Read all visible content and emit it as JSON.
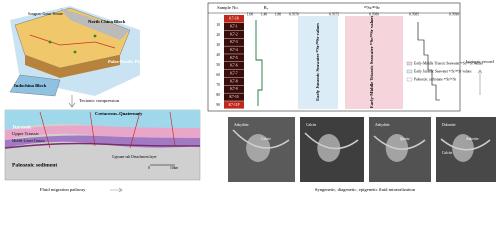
{
  "map": {
    "terrane": "Songpan -Ganzi Terrane",
    "north_china": "North China Block",
    "pacific": "Paleo-Pacific Plate",
    "indochina": "Indochina Block"
  },
  "arrows": {
    "tectonic": "Tectonic compression",
    "fluid": "Fluid migration pathway",
    "isotopic": "Isotopic record",
    "mineral": "Syngenetic, diagenetic, epigenetic fluid mineralization"
  },
  "section": {
    "cretaceous": "Cretaceous–Quaternary",
    "jurassic": "Jurassic",
    "upper_triassic": "Upper Triassic",
    "lower_triassic": "Middle-Lower Triassic",
    "paleozoic": "Paleozoic sediment",
    "gypsum": "Gypsum-salt Detachment layer",
    "scale": [
      "0",
      "10km"
    ]
  },
  "isotope_panel": {
    "headers": [
      "Sample No.",
      "Rₒ",
      "⁸⁷Sr/⁸⁶Sr"
    ],
    "samples": [
      "K7-1R",
      "K7-1",
      "K7-2",
      "K7-3",
      "K7-4",
      "K7-5",
      "K7-6",
      "K7-7",
      "K7-8",
      "K7-9",
      "K7-10",
      "K7-11P"
    ],
    "depth_ticks": [
      "10",
      "20",
      "30",
      "40",
      "50",
      "60",
      "70",
      "80",
      "90"
    ],
    "ro_ticks": [
      "1.00",
      "1.40",
      "1.80"
    ],
    "sr_ticks": [
      "0.7070",
      "0.7075",
      "0.7080",
      "0.7085",
      "0.7090"
    ],
    "bands": [
      "Early Jurassic Seawater ⁸⁷Sr/⁸⁶Sr values",
      "Early-Middle Triassic Seawater ⁸⁷Sr/⁸⁶Sr values"
    ],
    "legend": [
      "Early Jurassic Seawater ⁸⁷Sr/⁸⁶Sr values",
      "Early-Middle Triassic Seawater ⁸⁷Sr/⁸⁶Sr values",
      "Paleozoic carbonate ⁸⁷Sr/⁸⁶Sr"
    ]
  },
  "sem": [
    {
      "labels": [
        "Anhydrite",
        "Calcite"
      ]
    },
    {
      "labels": [
        "Calcite"
      ]
    },
    {
      "labels": [
        "Anhydrite",
        "Quartz"
      ]
    },
    {
      "labels": [
        "Dolomite",
        "Ankerite",
        "Calcite"
      ]
    }
  ]
}
